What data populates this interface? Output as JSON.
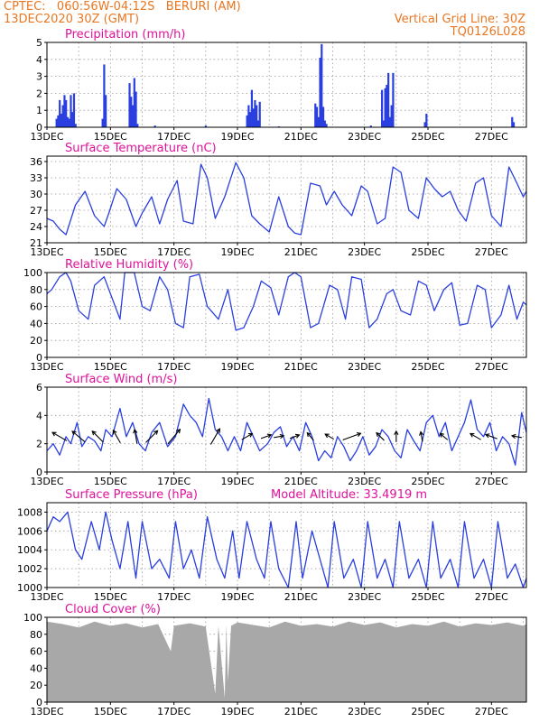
{
  "header": {
    "line1": "CPTEC:   060:56W-04:12S   BERURI (AM)",
    "line2": "13DEC2020 30Z (GMT)",
    "grid_note": "Vertical Grid Line: 30Z",
    "code": "TQ0126L028"
  },
  "colors": {
    "orange": "#e87722",
    "magenta": "#e0119a",
    "blue": "#2a3fe0",
    "gray": "#a8a8a8"
  },
  "x_axis": {
    "start_day": 13,
    "end_day": 28.1,
    "tick_labels": [
      "13DEC",
      "15DEC",
      "17DEC",
      "19DEC",
      "21DEC",
      "23DEC",
      "25DEC",
      "27DEC"
    ],
    "tick_days": [
      13,
      15,
      17,
      19,
      21,
      23,
      25,
      27
    ]
  },
  "chart_data": [
    {
      "id": "precip",
      "type": "bar",
      "title": "Precipitation (mm/h)",
      "ylim": [
        0,
        5
      ],
      "yticks": [
        "0",
        "1",
        "2",
        "3",
        "4",
        "5"
      ],
      "ytick_values": [
        0,
        1,
        2,
        3,
        4,
        5
      ],
      "grid": true,
      "x": [
        13.3,
        13.35,
        13.4,
        13.45,
        13.5,
        13.55,
        13.6,
        13.65,
        13.7,
        13.75,
        13.8,
        13.85,
        13.9,
        14.75,
        14.8,
        14.85,
        15.6,
        15.65,
        15.7,
        15.75,
        15.8,
        15.85,
        16.4,
        18.0,
        19.3,
        19.35,
        19.4,
        19.45,
        19.5,
        19.55,
        19.6,
        19.65,
        19.7,
        20.3,
        21.45,
        21.5,
        21.55,
        21.6,
        21.65,
        21.7,
        21.75,
        21.8,
        23.2,
        23.55,
        23.6,
        23.65,
        23.7,
        23.75,
        23.8,
        23.85,
        23.9,
        24.9,
        24.95,
        27.65,
        27.7
      ],
      "values": [
        0.5,
        0.7,
        1.6,
        0.8,
        1.3,
        1.9,
        1.6,
        0.6,
        0.5,
        1.9,
        0.9,
        2.0,
        0.2,
        0.5,
        3.7,
        1.9,
        2.6,
        1.8,
        1.3,
        2.9,
        2.1,
        0.2,
        0.1,
        0.1,
        0.7,
        1.3,
        0.9,
        2.2,
        1.1,
        1.6,
        1.3,
        0.4,
        1.5,
        0.05,
        1.4,
        1.2,
        0.6,
        4.1,
        4.9,
        1.2,
        0.4,
        0.2,
        0.1,
        2.2,
        0.4,
        2.3,
        2.5,
        3.2,
        0.6,
        1.3,
        3.2,
        0.3,
        0.8,
        0.6,
        0.3
      ]
    },
    {
      "id": "temp",
      "type": "line",
      "title": "Surface Temperature (nC)",
      "ylim": [
        21,
        37
      ],
      "yticks": [
        "21",
        "24",
        "27",
        "30",
        "33",
        "36"
      ],
      "ytick_values": [
        21,
        24,
        27,
        30,
        33,
        36
      ],
      "grid": true,
      "x": [
        13.0,
        13.2,
        13.4,
        13.6,
        13.9,
        14.2,
        14.5,
        14.8,
        14.95,
        15.2,
        15.5,
        15.8,
        16.0,
        16.3,
        16.55,
        16.8,
        17.1,
        17.3,
        17.6,
        17.85,
        18.05,
        18.3,
        18.6,
        18.95,
        19.2,
        19.45,
        19.7,
        20.0,
        20.3,
        20.6,
        20.8,
        21.0,
        21.3,
        21.6,
        21.8,
        22.05,
        22.3,
        22.6,
        22.9,
        23.1,
        23.4,
        23.65,
        23.9,
        24.15,
        24.4,
        24.7,
        24.95,
        25.2,
        25.45,
        25.7,
        25.95,
        26.2,
        26.5,
        26.75,
        27.0,
        27.3,
        27.55,
        27.8,
        28.0,
        28.1
      ],
      "values": [
        25.5,
        25,
        23.5,
        22.5,
        28,
        30.5,
        26,
        24,
        26.5,
        31,
        29,
        24,
        26.5,
        29.5,
        24.5,
        29,
        32.5,
        25,
        24.5,
        35.5,
        33,
        25.5,
        29.5,
        35.8,
        33,
        26,
        24.5,
        23,
        29.5,
        24,
        22.8,
        22.5,
        32,
        31.5,
        28,
        30.5,
        28,
        26,
        31.5,
        30.5,
        24.5,
        25.5,
        35,
        34,
        27,
        25.5,
        33,
        31,
        29.5,
        30.5,
        27,
        25,
        32,
        33,
        26,
        24,
        35,
        32,
        29.5,
        30.5
      ]
    },
    {
      "id": "rh",
      "type": "line",
      "title": "Relative Humidity (%)",
      "ylim": [
        0,
        100
      ],
      "yticks": [
        "0",
        "20",
        "40",
        "60",
        "80",
        "100"
      ],
      "ytick_values": [
        0,
        20,
        40,
        60,
        80,
        100
      ],
      "grid": true,
      "x": [
        13.0,
        13.15,
        13.4,
        13.6,
        13.75,
        14.0,
        14.3,
        14.5,
        14.8,
        14.95,
        15.3,
        15.45,
        15.75,
        16.0,
        16.25,
        16.55,
        16.8,
        17.05,
        17.3,
        17.5,
        17.8,
        18.05,
        18.4,
        18.7,
        18.95,
        19.2,
        19.5,
        19.75,
        20.05,
        20.3,
        20.6,
        20.8,
        21.0,
        21.3,
        21.55,
        21.9,
        22.15,
        22.4,
        22.6,
        22.9,
        23.15,
        23.4,
        23.7,
        23.9,
        24.15,
        24.45,
        24.7,
        24.95,
        25.2,
        25.5,
        25.75,
        26.0,
        26.25,
        26.55,
        26.8,
        27.0,
        27.3,
        27.55,
        27.8,
        28.0,
        28.1
      ],
      "values": [
        75,
        80,
        95,
        100,
        90,
        55,
        45,
        85,
        95,
        80,
        45,
        100,
        100,
        60,
        55,
        95,
        80,
        40,
        35,
        95,
        98,
        60,
        45,
        80,
        32,
        35,
        60,
        90,
        82,
        50,
        95,
        100,
        95,
        35,
        40,
        85,
        80,
        45,
        95,
        92,
        35,
        45,
        75,
        80,
        55,
        50,
        90,
        85,
        55,
        80,
        88,
        38,
        40,
        85,
        80,
        35,
        50,
        85,
        45,
        65,
        62
      ]
    },
    {
      "id": "wind",
      "type": "line",
      "title": "Surface Wind (m/s)",
      "ylim": [
        0,
        6
      ],
      "yticks": [
        "0",
        "2",
        "4",
        "6"
      ],
      "ytick_values": [
        0,
        2,
        4,
        6
      ],
      "grid": true,
      "x": [
        13.0,
        13.2,
        13.4,
        13.6,
        13.75,
        13.95,
        14.1,
        14.3,
        14.5,
        14.7,
        14.85,
        15.05,
        15.3,
        15.5,
        15.7,
        15.9,
        16.1,
        16.3,
        16.55,
        16.8,
        17.05,
        17.3,
        17.5,
        17.7,
        17.9,
        18.1,
        18.3,
        18.5,
        18.7,
        18.9,
        19.1,
        19.3,
        19.5,
        19.7,
        19.95,
        20.15,
        20.35,
        20.55,
        20.75,
        20.95,
        21.15,
        21.35,
        21.55,
        21.75,
        21.95,
        22.15,
        22.35,
        22.55,
        22.75,
        22.95,
        23.15,
        23.35,
        23.55,
        23.75,
        23.95,
        24.15,
        24.35,
        24.55,
        24.75,
        24.95,
        25.15,
        25.35,
        25.55,
        25.75,
        25.95,
        26.15,
        26.35,
        26.55,
        26.75,
        26.95,
        27.15,
        27.35,
        27.55,
        27.75,
        27.95,
        28.1
      ],
      "values": [
        1.5,
        2,
        1.2,
        2.5,
        2,
        3.5,
        1.8,
        2.5,
        2.2,
        1.5,
        3,
        2.5,
        4.5,
        2.5,
        3.5,
        2,
        1.5,
        2.8,
        3.5,
        1.8,
        2.5,
        4.8,
        4,
        3.5,
        2.5,
        5.2,
        3,
        2.5,
        1.5,
        2.5,
        1.5,
        3.5,
        2.5,
        1.5,
        2,
        2.8,
        3.2,
        1.8,
        2.5,
        1.5,
        3.5,
        2.5,
        0.8,
        1.5,
        1,
        2.5,
        1.8,
        0.8,
        1.5,
        2.5,
        1.2,
        1.8,
        3,
        2.5,
        1.5,
        1,
        3,
        2.2,
        1.5,
        3.5,
        4,
        2.5,
        3.5,
        1.5,
        2.5,
        3.5,
        5.1,
        3,
        2.5,
        3.5,
        1.5,
        2.5,
        2,
        0.5,
        4.2,
        2.8
      ]
    },
    {
      "id": "pressure",
      "type": "line",
      "title": "Surface Pressure (hPa)",
      "subtitle": "Model Altitude: 33.4919 m",
      "ylim": [
        1000,
        1009
      ],
      "yticks": [
        "1000",
        "1002",
        "1004",
        "1006",
        "1008"
      ],
      "ytick_values": [
        1000,
        1002,
        1004,
        1006,
        1008
      ],
      "grid": true,
      "x": [
        13.0,
        13.2,
        13.4,
        13.65,
        13.9,
        14.1,
        14.4,
        14.65,
        14.85,
        15.05,
        15.3,
        15.55,
        15.8,
        16.0,
        16.3,
        16.55,
        16.85,
        17.05,
        17.3,
        17.55,
        17.8,
        18.05,
        18.35,
        18.6,
        18.85,
        19.05,
        19.3,
        19.6,
        19.85,
        20.05,
        20.3,
        20.6,
        20.85,
        21.05,
        21.35,
        21.6,
        21.85,
        22.05,
        22.35,
        22.65,
        22.9,
        23.1,
        23.4,
        23.65,
        23.9,
        24.1,
        24.4,
        24.7,
        24.95,
        25.15,
        25.4,
        25.7,
        25.95,
        26.15,
        26.45,
        26.75,
        27.0,
        27.2,
        27.5,
        27.75,
        28.0,
        28.1
      ],
      "values": [
        1006,
        1007.5,
        1007,
        1008,
        1004,
        1003,
        1007,
        1004,
        1008,
        1005,
        1002,
        1007,
        1001,
        1007,
        1002,
        1003,
        1001,
        1007,
        1002,
        1004,
        1001,
        1007.5,
        1003,
        1001,
        1006,
        1001,
        1007,
        1003,
        1001,
        1007,
        1002,
        1000,
        1007,
        1001,
        1006,
        1003,
        1000,
        1007,
        1001,
        1003,
        1000,
        1007,
        1001,
        1003,
        1000,
        1007,
        1001,
        1003,
        1000,
        1007,
        1001,
        1003,
        1000,
        1007,
        1001,
        1003,
        1000,
        1007,
        1001,
        1002.5,
        1000,
        1001
      ]
    },
    {
      "id": "cloud",
      "type": "area",
      "title": "Cloud Cover (%)",
      "ylim": [
        0,
        100
      ],
      "yticks": [
        "0",
        "20",
        "40",
        "60",
        "80",
        "100"
      ],
      "ytick_values": [
        0,
        20,
        40,
        60,
        80,
        100
      ],
      "grid": true,
      "x": [
        13.0,
        13.5,
        14.0,
        14.5,
        15.0,
        15.5,
        16.0,
        16.5,
        16.9,
        17.0,
        17.5,
        18.0,
        18.3,
        18.4,
        18.6,
        18.65,
        18.7,
        18.8,
        19.0,
        19.5,
        20.0,
        20.5,
        21.0,
        21.5,
        22.0,
        22.5,
        23.0,
        23.5,
        24.0,
        24.5,
        25.0,
        25.5,
        26.0,
        26.5,
        27.0,
        27.5,
        28.0,
        28.1
      ],
      "values": [
        95,
        92,
        88,
        95,
        90,
        93,
        88,
        92,
        60,
        90,
        93,
        89,
        10,
        90,
        5,
        92,
        25,
        90,
        94,
        91,
        88,
        95,
        90,
        92,
        89,
        95,
        91,
        94,
        88,
        92,
        90,
        95,
        89,
        93,
        91,
        94,
        90,
        92
      ]
    }
  ],
  "wind_arrows": [
    {
      "day": 13.4,
      "speed": 2.5,
      "dir": -150
    },
    {
      "day": 14.0,
      "speed": 2.5,
      "dir": -140
    },
    {
      "day": 14.6,
      "speed": 2.2,
      "dir": -135
    },
    {
      "day": 15.2,
      "speed": 2.0,
      "dir": -120
    },
    {
      "day": 15.8,
      "speed": 2.0,
      "dir": -100
    },
    {
      "day": 16.3,
      "speed": 2.5,
      "dir": -45
    },
    {
      "day": 17.0,
      "speed": 3.0,
      "dir": -50
    },
    {
      "day": 18.3,
      "speed": 2.8,
      "dir": -60
    },
    {
      "day": 19.3,
      "speed": 1.5,
      "dir": -30
    },
    {
      "day": 19.9,
      "speed": 1.2,
      "dir": -20
    },
    {
      "day": 20.3,
      "speed": 1.0,
      "dir": -10
    },
    {
      "day": 20.8,
      "speed": 1.0,
      "dir": -20
    },
    {
      "day": 21.3,
      "speed": 1.0,
      "dir": -130
    },
    {
      "day": 21.9,
      "speed": 1.0,
      "dir": -150
    },
    {
      "day": 22.6,
      "speed": 3.0,
      "dir": -20
    },
    {
      "day": 23.5,
      "speed": 1.2,
      "dir": -135
    },
    {
      "day": 24.0,
      "speed": 1.2,
      "dir": -90
    },
    {
      "day": 24.8,
      "speed": 1.0,
      "dir": -100
    },
    {
      "day": 25.5,
      "speed": 1.0,
      "dir": -140
    },
    {
      "day": 26.5,
      "speed": 1.5,
      "dir": -150
    },
    {
      "day": 27.0,
      "speed": 1.5,
      "dir": -160
    },
    {
      "day": 27.8,
      "speed": 1.0,
      "dir": -170
    }
  ]
}
